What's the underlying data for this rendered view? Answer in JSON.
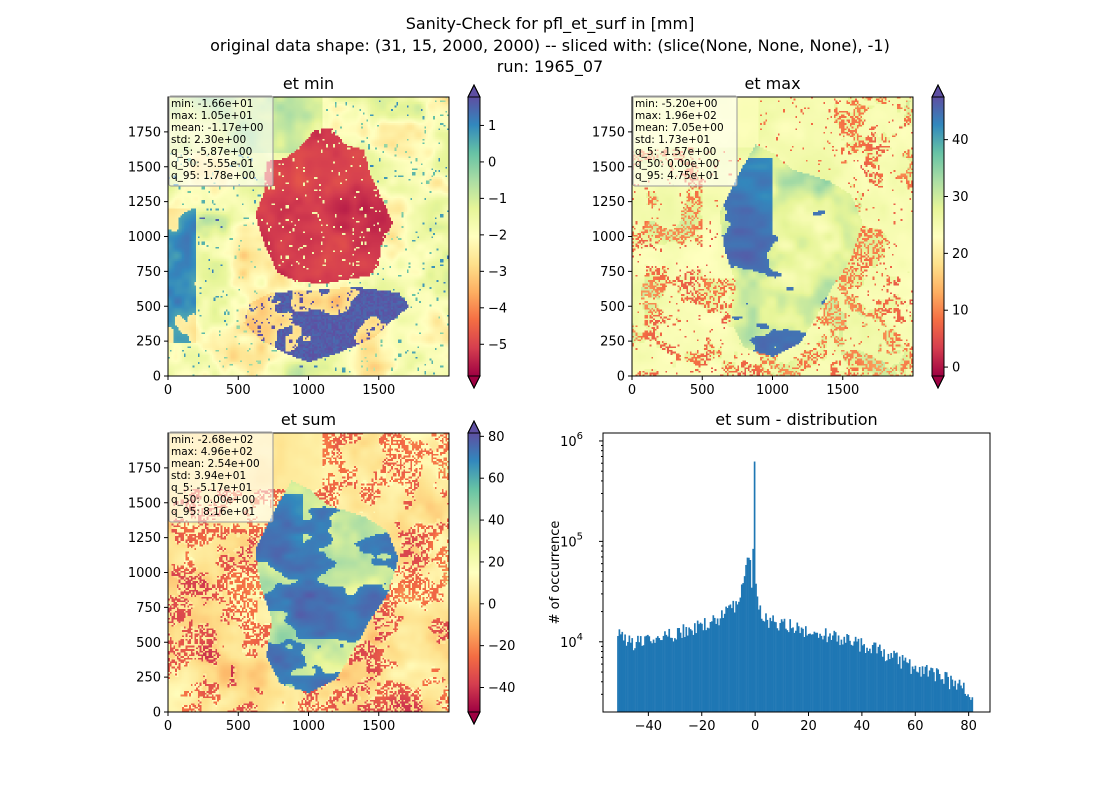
{
  "figure": {
    "suptitle_lines": [
      "Sanity-Check for pfl_et_surf in [mm]",
      "original data shape: (31, 15, 2000, 2000) -- sliced with: (slice(None, None, None), -1)",
      "run: 1965_07"
    ]
  },
  "chart_data": [
    {
      "type": "heatmap",
      "title": "et min",
      "xlim": [
        0,
        2000
      ],
      "ylim": [
        0,
        2000
      ],
      "xticks": [
        0,
        500,
        1000,
        1500
      ],
      "yticks": [
        0,
        250,
        500,
        750,
        1000,
        1250,
        1500,
        1750
      ],
      "stats": [
        "min: -1.66e+01",
        "max: 1.05e+01",
        "mean: -1.17e+00",
        "std: 2.30e+00",
        "q_5: -5.87e+00",
        "q_50: -5.55e-01",
        "q_95: 1.78e+00"
      ],
      "colorbar": {
        "cmap": "Spectral",
        "vmin": -5.87,
        "vmax": 1.78,
        "ticks": [
          1,
          0,
          -1,
          -2,
          -3,
          -4,
          -5
        ],
        "tick_labels": [
          "1",
          "0",
          "−1",
          "−2",
          "−3",
          "−4",
          "−5"
        ],
        "extend": "both"
      }
    },
    {
      "type": "heatmap",
      "title": "et max",
      "xlim": [
        0,
        2000
      ],
      "ylim": [
        0,
        2000
      ],
      "xticks": [
        0,
        500,
        1000,
        1500
      ],
      "yticks": [
        0,
        250,
        500,
        750,
        1000,
        1250,
        1500,
        1750
      ],
      "stats": [
        "min: -5.20e+00",
        "max: 1.96e+02",
        "mean: 7.05e+00",
        "std: 1.73e+01",
        "q_5: -1.57e+00",
        "q_50: 0.00e+00",
        "q_95: 4.75e+01"
      ],
      "colorbar": {
        "cmap": "Spectral",
        "vmin": -1.57,
        "vmax": 47.5,
        "ticks": [
          40,
          30,
          20,
          10,
          0
        ],
        "tick_labels": [
          "40",
          "30",
          "20",
          "10",
          "0"
        ],
        "extend": "both"
      }
    },
    {
      "type": "heatmap",
      "title": "et sum",
      "xlim": [
        0,
        2000
      ],
      "ylim": [
        0,
        2000
      ],
      "xticks": [
        0,
        500,
        1000,
        1500
      ],
      "yticks": [
        0,
        250,
        500,
        750,
        1000,
        1250,
        1500,
        1750
      ],
      "stats": [
        "min: -2.68e+02",
        "max: 4.96e+02",
        "mean: 2.54e+00",
        "std: 3.94e+01",
        "q_5: -5.17e+01",
        "q_50: 0.00e+00",
        "q_95: 8.16e+01"
      ],
      "colorbar": {
        "cmap": "Spectral",
        "vmin": -51.7,
        "vmax": 81.6,
        "ticks": [
          80,
          60,
          40,
          20,
          0,
          -20,
          -40
        ],
        "tick_labels": [
          "80",
          "60",
          "40",
          "20",
          "0",
          "−20",
          "−40"
        ],
        "extend": "both"
      }
    },
    {
      "type": "bar",
      "title": "et sum - distribution",
      "xlabel": "",
      "ylabel": "# of occurrence",
      "yscale": "log",
      "color": "#1f77b4",
      "xlim": [
        -57,
        88
      ],
      "ylim": [
        2000,
        1200000
      ],
      "xticks": [
        -40,
        -20,
        0,
        20,
        40,
        60,
        80
      ],
      "xtick_labels": [
        "−40",
        "−20",
        "0",
        "20",
        "40",
        "60",
        "80"
      ],
      "yticks": [
        10000,
        100000,
        1000000
      ],
      "bin_range": [
        -51.7,
        81.6
      ],
      "bins": 250,
      "anchor_counts": [
        [
          -51.7,
          12000
        ],
        [
          -45,
          9800
        ],
        [
          -40,
          10000
        ],
        [
          -35,
          11000
        ],
        [
          -30,
          12000
        ],
        [
          -25,
          13500
        ],
        [
          -20,
          14500
        ],
        [
          -15,
          16500
        ],
        [
          -10,
          20000
        ],
        [
          -7,
          25000
        ],
        [
          -5,
          35000
        ],
        [
          -3.5,
          50000
        ],
        [
          -2.5,
          70000
        ],
        [
          -1.5,
          50000
        ],
        [
          -1,
          30000
        ],
        [
          -0.2,
          850000
        ],
        [
          0.3,
          35000
        ],
        [
          2,
          20000
        ],
        [
          5,
          16000
        ],
        [
          10,
          15000
        ],
        [
          20,
          13000
        ],
        [
          30,
          11500
        ],
        [
          40,
          9500
        ],
        [
          50,
          7500
        ],
        [
          60,
          5500
        ],
        [
          70,
          4500
        ],
        [
          81.6,
          3000
        ]
      ]
    }
  ]
}
